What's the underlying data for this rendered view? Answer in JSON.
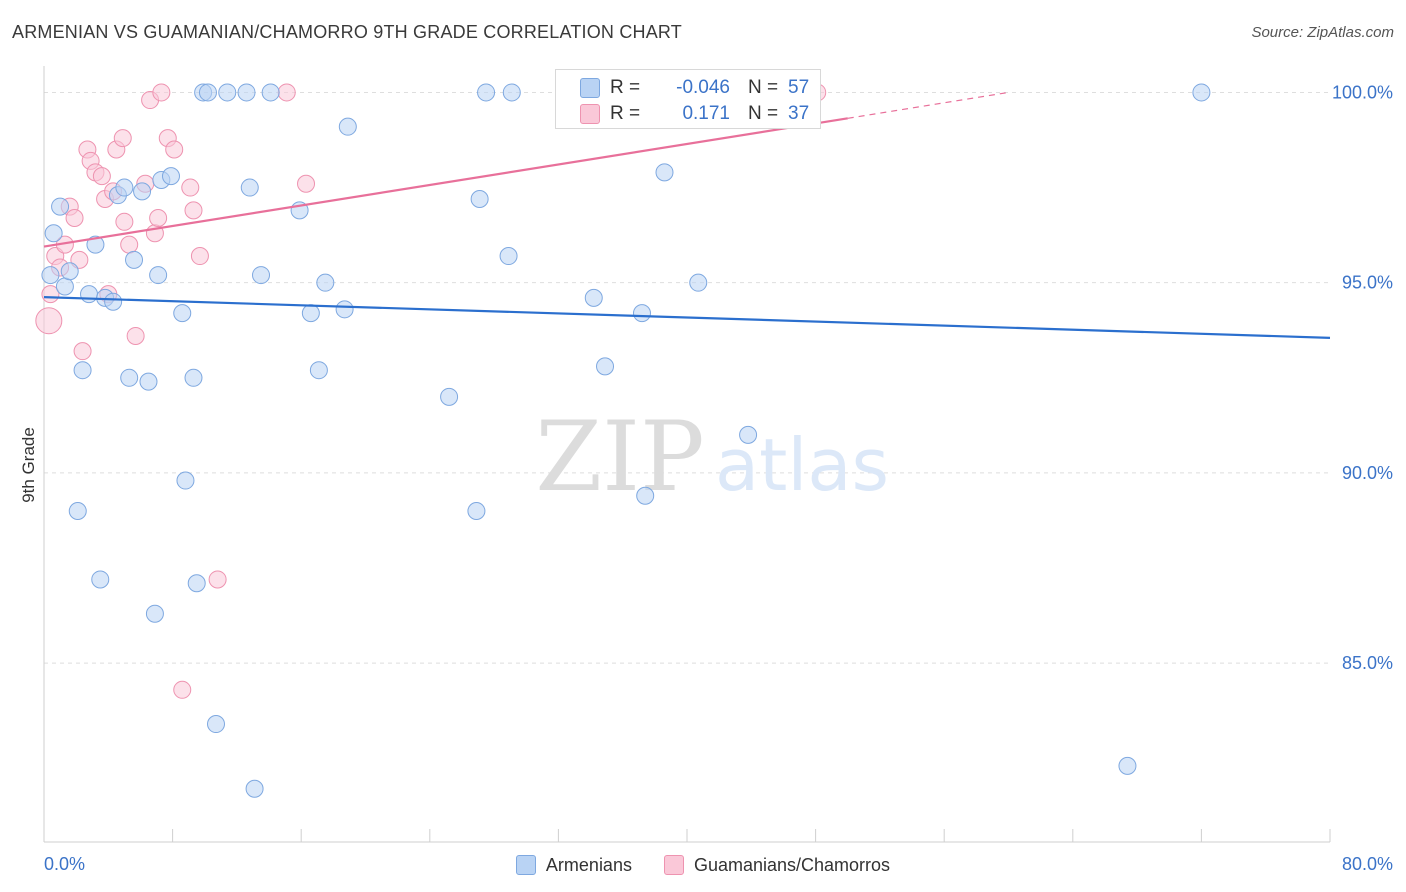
{
  "title": "ARMENIAN VS GUAMANIAN/CHAMORRO 9TH GRADE CORRELATION CHART",
  "source": "Source: ZipAtlas.com",
  "watermark": {
    "zip": "ZIP",
    "atlas": "atlas"
  },
  "stats": [
    {
      "r_label": "R =",
      "r_value": "-0.046",
      "n_label": "N =",
      "n_value": "57"
    },
    {
      "r_label": "R =",
      "r_value": "0.171",
      "n_label": "N =",
      "n_value": "37"
    }
  ],
  "legend": {
    "armenians": "Armenians",
    "guamanians": "Guamanians/Chamorros"
  },
  "colors": {
    "blue_fill": "#b9d3f4",
    "blue_stroke": "#7ea8e0",
    "blue_line": "#2b6fce",
    "pink_fill": "#fac8d8",
    "pink_stroke": "#ee93b0",
    "pink_line": "#e8709a",
    "axis_text": "#3b73c8"
  },
  "chart_data": {
    "type": "scatter",
    "title": "ARMENIAN VS GUAMANIAN/CHAMORRO 9TH GRADE CORRELATION CHART",
    "xlabel": "",
    "ylabel": "9th Grade",
    "xlim": [
      0,
      80
    ],
    "ylim": [
      80.3,
      100.8
    ],
    "x_ticks": [
      "0.0%",
      "80.0%"
    ],
    "y_ticks": [
      {
        "value": 100,
        "label": "100.0%"
      },
      {
        "value": 95,
        "label": "95.0%"
      },
      {
        "value": 90,
        "label": "90.0%"
      },
      {
        "value": 85,
        "label": "85.0%"
      }
    ],
    "grid": true,
    "legend_position": "bottom",
    "series": [
      {
        "name": "Armenians",
        "color": "#b9d3f4",
        "points": [
          [
            0.4,
            95.2
          ],
          [
            0.6,
            96.3
          ],
          [
            1.0,
            97.0
          ],
          [
            1.3,
            94.9
          ],
          [
            1.6,
            95.3
          ],
          [
            2.1,
            89.0
          ],
          [
            2.4,
            92.7
          ],
          [
            2.8,
            94.7
          ],
          [
            3.2,
            96.0
          ],
          [
            3.5,
            87.2
          ],
          [
            3.8,
            94.6
          ],
          [
            4.3,
            94.5
          ],
          [
            4.6,
            97.3
          ],
          [
            5.0,
            97.5
          ],
          [
            5.3,
            92.5
          ],
          [
            5.6,
            95.6
          ],
          [
            6.1,
            97.4
          ],
          [
            6.5,
            92.4
          ],
          [
            6.9,
            86.3
          ],
          [
            7.1,
            95.2
          ],
          [
            7.3,
            97.7
          ],
          [
            7.9,
            97.8
          ],
          [
            8.6,
            94.2
          ],
          [
            8.8,
            89.8
          ],
          [
            9.3,
            92.5
          ],
          [
            9.5,
            87.1
          ],
          [
            9.9,
            100.0
          ],
          [
            10.2,
            100.0
          ],
          [
            10.7,
            83.4
          ],
          [
            11.4,
            100.0
          ],
          [
            12.6,
            100.0
          ],
          [
            12.8,
            97.5
          ],
          [
            13.1,
            81.7
          ],
          [
            13.5,
            95.2
          ],
          [
            14.1,
            100.0
          ],
          [
            15.9,
            96.9
          ],
          [
            16.6,
            94.2
          ],
          [
            17.1,
            92.7
          ],
          [
            17.5,
            95.0
          ],
          [
            18.7,
            94.3
          ],
          [
            18.9,
            99.1
          ],
          [
            25.2,
            92.0
          ],
          [
            26.9,
            89.0
          ],
          [
            27.1,
            97.2
          ],
          [
            27.5,
            100.0
          ],
          [
            28.9,
            95.7
          ],
          [
            29.1,
            100.0
          ],
          [
            33.0,
            100.0
          ],
          [
            34.2,
            94.6
          ],
          [
            34.9,
            92.8
          ],
          [
            37.2,
            94.2
          ],
          [
            37.4,
            89.4
          ],
          [
            38.6,
            97.9
          ],
          [
            40.7,
            95.0
          ],
          [
            43.8,
            91.0
          ],
          [
            67.4,
            82.3
          ],
          [
            72.0,
            100.0
          ]
        ]
      },
      {
        "name": "Guamanians/Chamorros",
        "color": "#fac8d8",
        "points": [
          [
            0.3,
            94.0
          ],
          [
            0.4,
            94.7
          ],
          [
            0.7,
            95.7
          ],
          [
            1.0,
            95.4
          ],
          [
            1.3,
            96.0
          ],
          [
            1.6,
            97.0
          ],
          [
            2.2,
            95.6
          ],
          [
            2.4,
            93.2
          ],
          [
            2.7,
            98.5
          ],
          [
            2.9,
            98.2
          ],
          [
            3.2,
            97.9
          ],
          [
            3.6,
            97.8
          ],
          [
            3.8,
            97.2
          ],
          [
            4.0,
            94.7
          ],
          [
            4.3,
            97.4
          ],
          [
            4.5,
            98.5
          ],
          [
            4.9,
            98.8
          ],
          [
            5.0,
            96.6
          ],
          [
            5.3,
            96.0
          ],
          [
            5.7,
            93.6
          ],
          [
            6.3,
            97.6
          ],
          [
            6.6,
            99.8
          ],
          [
            6.9,
            96.3
          ],
          [
            7.1,
            96.7
          ],
          [
            7.3,
            100.0
          ],
          [
            7.7,
            98.8
          ],
          [
            8.1,
            98.5
          ],
          [
            8.6,
            84.3
          ],
          [
            9.1,
            97.5
          ],
          [
            9.3,
            96.9
          ],
          [
            9.7,
            95.7
          ],
          [
            10.8,
            87.2
          ],
          [
            15.1,
            100.0
          ],
          [
            16.3,
            97.6
          ],
          [
            35.2,
            100.0
          ],
          [
            48.1,
            100.0
          ],
          [
            1.9,
            96.7
          ]
        ]
      }
    ],
    "trendlines": [
      {
        "series": "Armenians",
        "x": [
          0,
          80
        ],
        "y": [
          94.62,
          93.55
        ]
      },
      {
        "series": "Guamanians/Chamorros",
        "x": [
          0,
          50
        ],
        "y": [
          95.95,
          99.32
        ],
        "dashed_extension_to": [
          60,
          100.0
        ]
      }
    ]
  }
}
